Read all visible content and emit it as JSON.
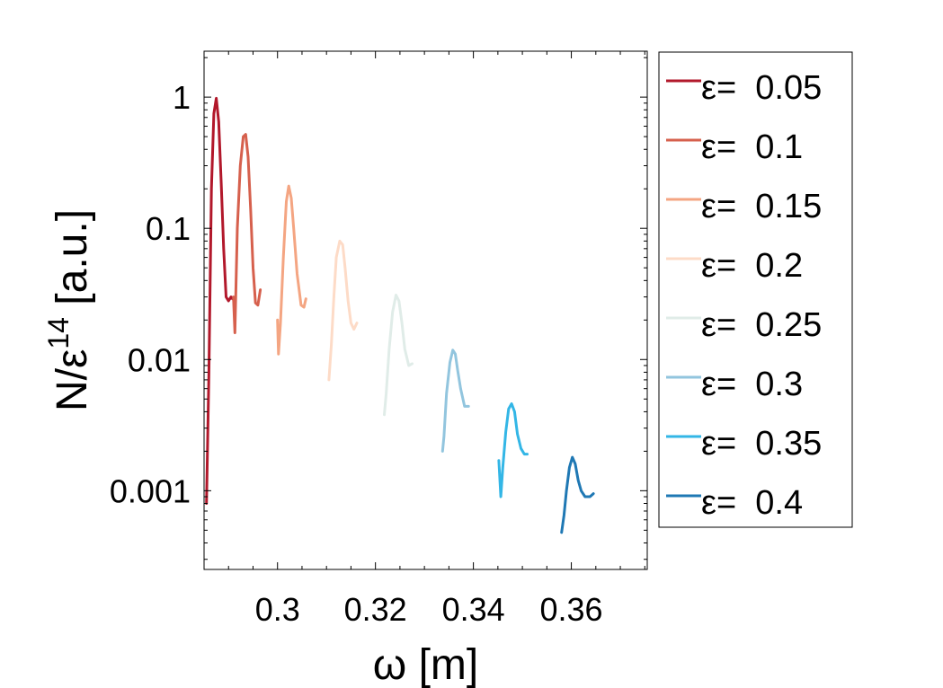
{
  "chart_data": {
    "type": "line",
    "title": "",
    "xlabel": "ω [m]",
    "ylabel_base": "N/ε",
    "ylabel_exp": "14",
    "ylabel_suffix": " [a.u.]",
    "xlim": [
      0.285,
      0.3755
    ],
    "ylim_log10": [
      -3.6,
      0.35
    ],
    "y_scale": "log",
    "grid": false,
    "legend_position": "outside-right",
    "x_ticks": [
      0.3,
      0.32,
      0.34,
      0.36
    ],
    "x_tick_labels": [
      "0.3",
      "0.32",
      "0.34",
      "0.36"
    ],
    "y_ticks": [
      0.001,
      0.01,
      0.1,
      1
    ],
    "y_tick_labels": [
      "0.001",
      "0.01",
      "0.1",
      "1"
    ],
    "series": [
      {
        "name": "ε=  0.05",
        "color": "#b2182b",
        "x": [
          0.2855,
          0.286,
          0.2865,
          0.287,
          0.2875,
          0.288,
          0.2885,
          0.289,
          0.2895,
          0.29,
          0.2905,
          0.2908
        ],
        "y": [
          0.0008,
          0.008,
          0.2,
          0.75,
          0.98,
          0.65,
          0.22,
          0.07,
          0.03,
          0.028,
          0.03,
          0.029
        ]
      },
      {
        "name": "ε=  0.1",
        "color": "#d6604d",
        "x": [
          0.291,
          0.2913,
          0.2918,
          0.2924,
          0.293,
          0.2935,
          0.294,
          0.2945,
          0.295,
          0.2955,
          0.296,
          0.2965
        ],
        "y": [
          0.03,
          0.016,
          0.1,
          0.3,
          0.5,
          0.52,
          0.35,
          0.14,
          0.05,
          0.027,
          0.026,
          0.034
        ]
      },
      {
        "name": "ε=  0.15",
        "color": "#f4a582",
        "x": [
          0.3,
          0.3002,
          0.3006,
          0.3012,
          0.3018,
          0.3023,
          0.3028,
          0.3033,
          0.304,
          0.3048,
          0.3054,
          0.3058
        ],
        "y": [
          0.02,
          0.011,
          0.019,
          0.06,
          0.16,
          0.21,
          0.17,
          0.1,
          0.045,
          0.026,
          0.025,
          0.029
        ]
      },
      {
        "name": "ε=  0.2",
        "color": "#fddbc7",
        "x": [
          0.3105,
          0.311,
          0.3115,
          0.312,
          0.3127,
          0.3133,
          0.3138,
          0.3144,
          0.315,
          0.3156,
          0.3162
        ],
        "y": [
          0.007,
          0.013,
          0.03,
          0.06,
          0.08,
          0.075,
          0.05,
          0.028,
          0.019,
          0.017,
          0.019
        ]
      },
      {
        "name": "ε=  0.25",
        "color": "#e0ece8",
        "x": [
          0.3218,
          0.3222,
          0.3228,
          0.3235,
          0.3242,
          0.3248,
          0.3254,
          0.326,
          0.3268,
          0.3275
        ],
        "y": [
          0.0038,
          0.0055,
          0.012,
          0.023,
          0.031,
          0.028,
          0.019,
          0.012,
          0.009,
          0.0093
        ]
      },
      {
        "name": "ε=  0.3",
        "color": "#92c5de",
        "x": [
          0.3337,
          0.334,
          0.3345,
          0.3352,
          0.3358,
          0.3363,
          0.3368,
          0.3374,
          0.3382,
          0.339
        ],
        "y": [
          0.002,
          0.0026,
          0.0055,
          0.0095,
          0.0118,
          0.011,
          0.0082,
          0.006,
          0.0044,
          0.0044
        ]
      },
      {
        "name": "ε=  0.35",
        "color": "#33b6e6",
        "x": [
          0.3452,
          0.3456,
          0.346,
          0.3466,
          0.3472,
          0.3478,
          0.3484,
          0.349,
          0.3497,
          0.3504,
          0.351
        ],
        "y": [
          0.0017,
          0.0009,
          0.0015,
          0.0028,
          0.0042,
          0.0046,
          0.004,
          0.0027,
          0.0021,
          0.0019,
          0.0019
        ]
      },
      {
        "name": "ε=  0.4",
        "color": "#1f78b4",
        "x": [
          0.358,
          0.3585,
          0.359,
          0.3596,
          0.3602,
          0.3608,
          0.3614,
          0.362,
          0.3628,
          0.3638,
          0.3645
        ],
        "y": [
          0.00048,
          0.00065,
          0.001,
          0.0015,
          0.0018,
          0.0016,
          0.0012,
          0.001,
          0.0009,
          0.0009,
          0.00095
        ]
      }
    ]
  }
}
